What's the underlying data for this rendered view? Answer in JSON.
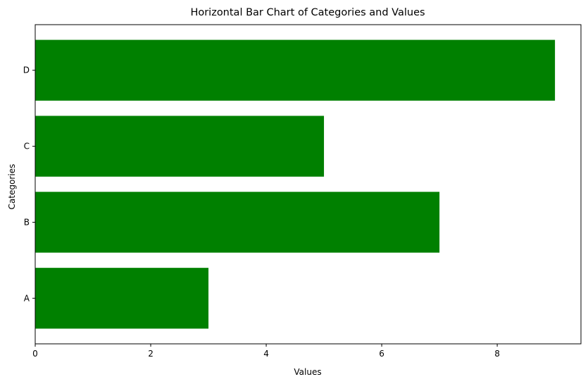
{
  "chart_data": {
    "type": "bar",
    "orientation": "horizontal",
    "title": "Horizontal Bar Chart of Categories and Values",
    "xlabel": "Values",
    "ylabel": "Categories",
    "categories": [
      "A",
      "B",
      "C",
      "D"
    ],
    "values": [
      3,
      7,
      5,
      9
    ],
    "xlim": [
      0,
      9.45
    ],
    "xticks": [
      0,
      2,
      4,
      6,
      8
    ],
    "bar_color": "#008000",
    "grid": false,
    "legend": false
  }
}
